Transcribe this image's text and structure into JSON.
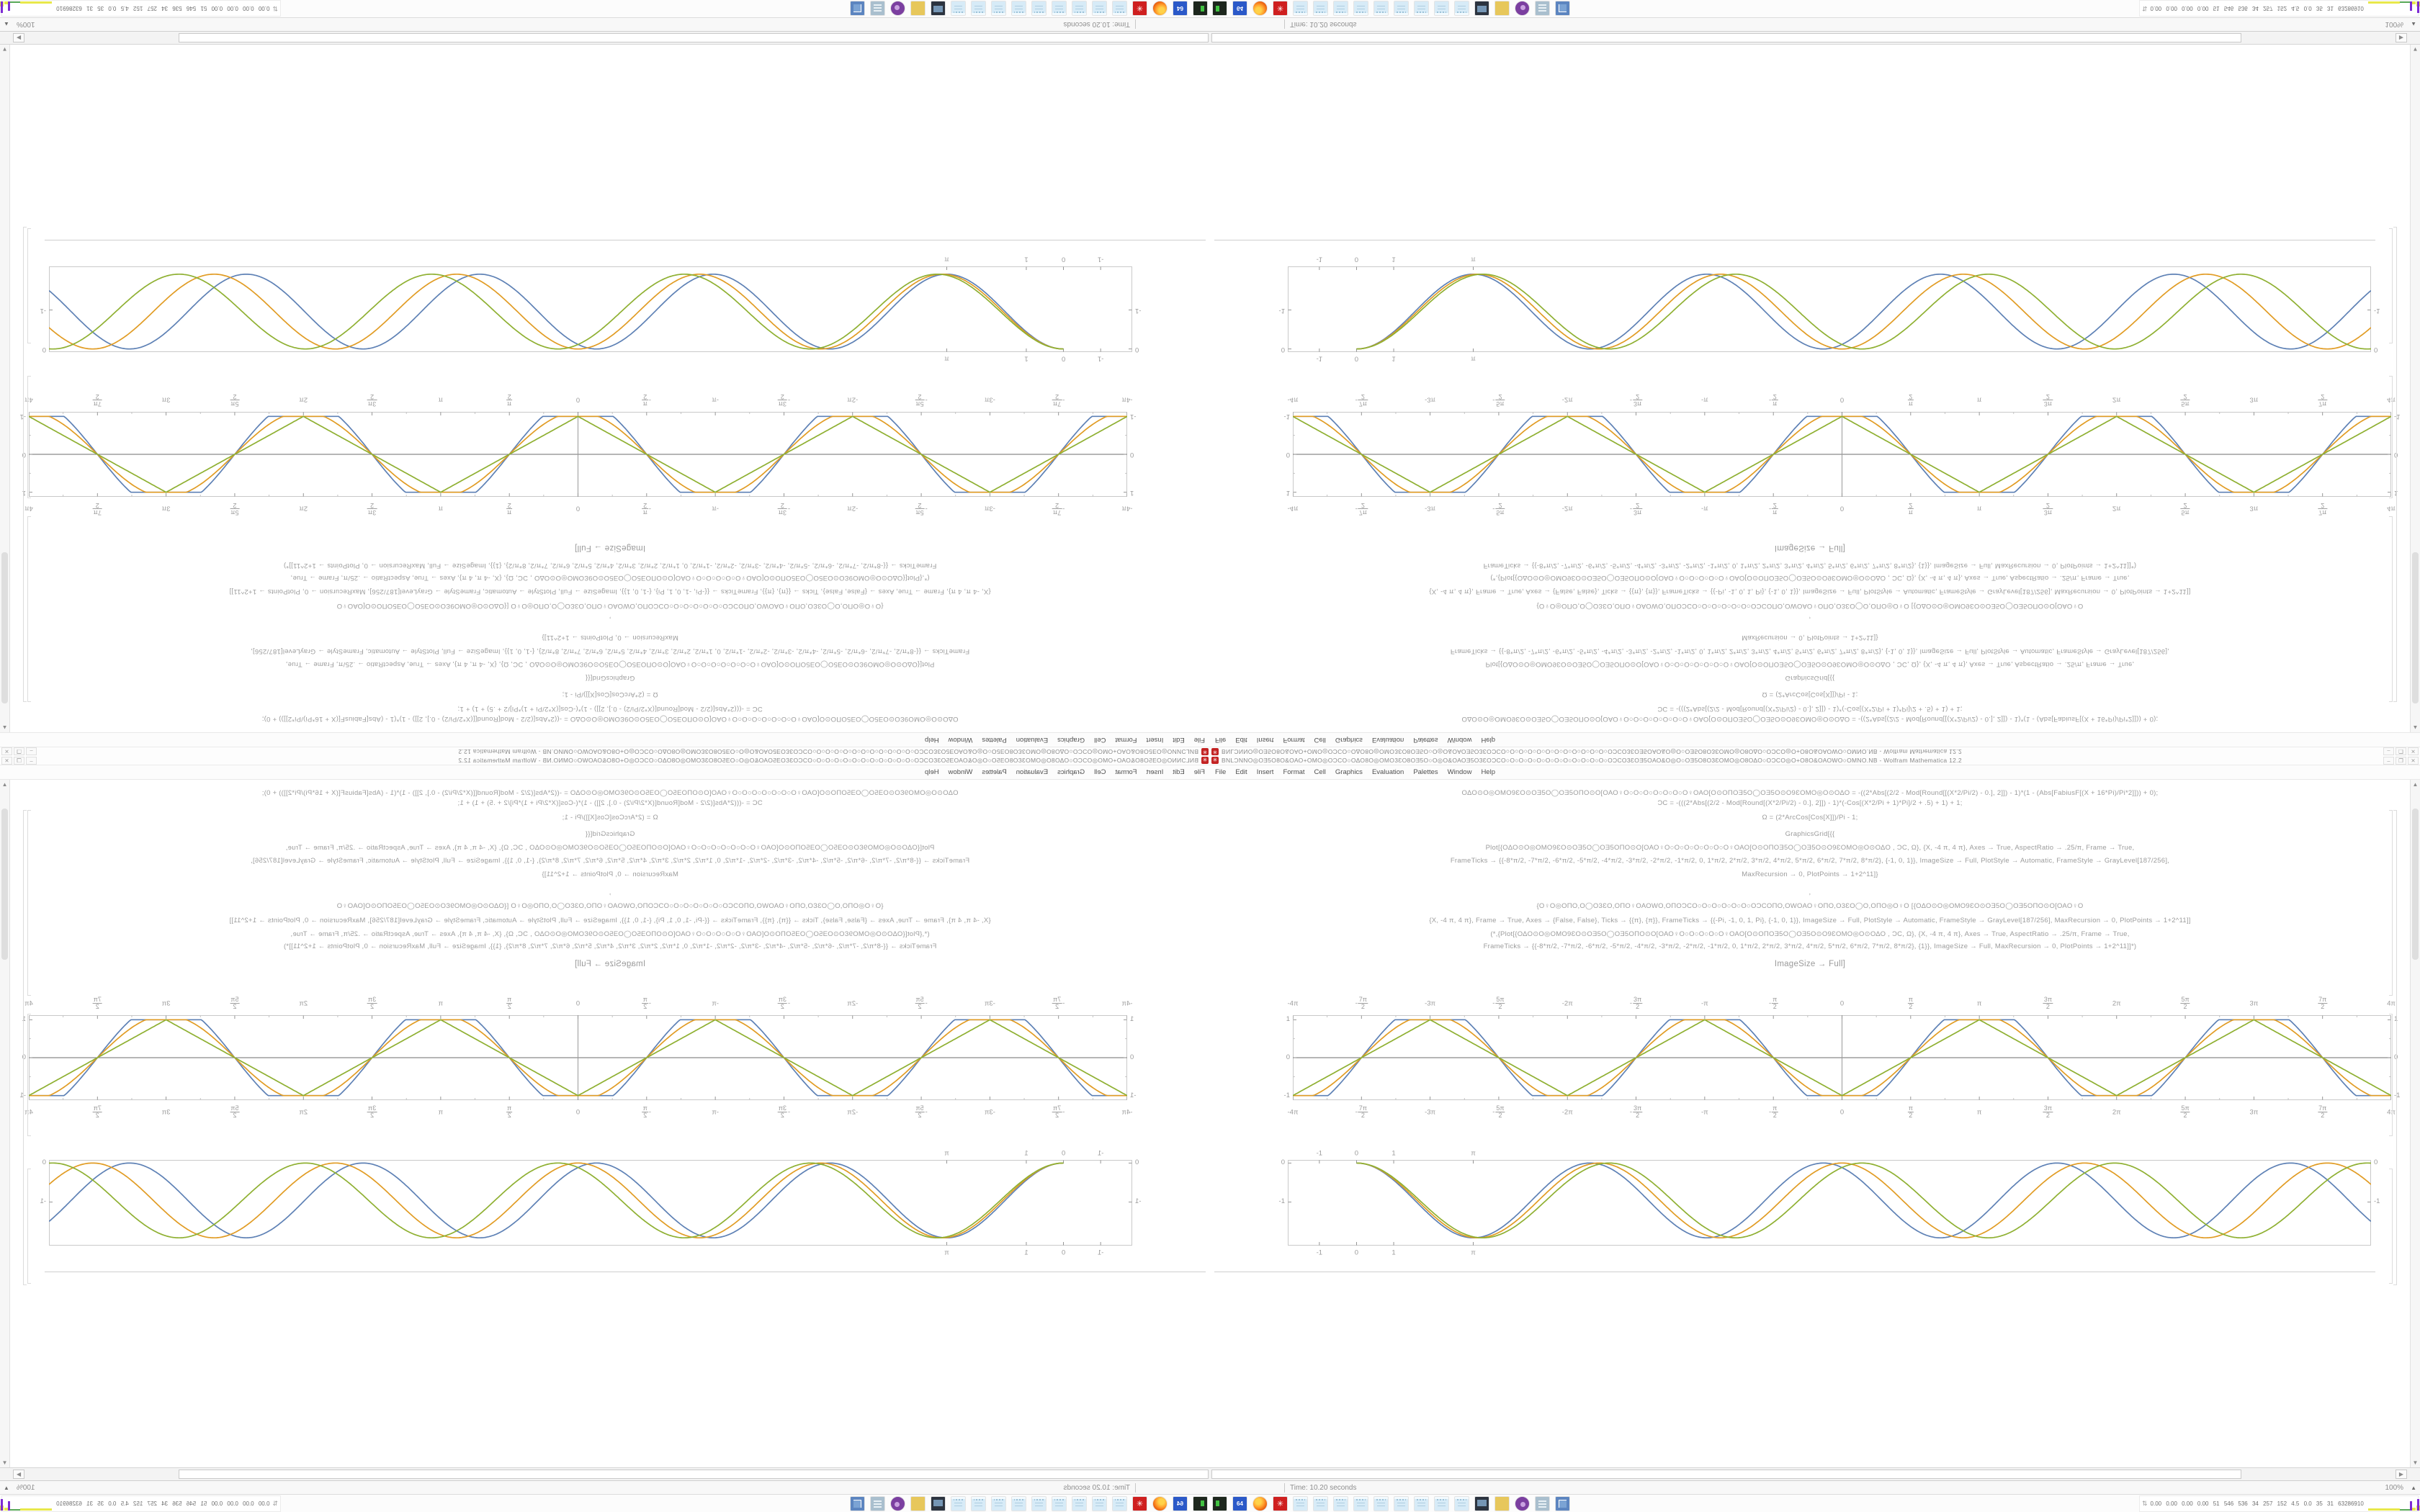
{
  "desktop": {
    "window": {
      "icon_glyph": "✳",
      "title": "BNLƆNΝΟ◎ΟƎ5Ο8Ο&ΟΑΟ+ΟΜΟ◎ΟƆCΟ○ΟΔΟ8Ο◎ΟΜΟ3ƐΟ8ΟƎ5Ο○Ο◎Ο&ΟΑΟƎ5Ο3ƐΟƆCΟ○Ο○Ο○Ο○Ο○Ο○Ο○Ο○Ο○Ο○Ο○Ο○ΟƆCΟ3ƐΟƎ5ΟΑΟ&Ο◎Ο○ΟƎ5Ο8Ο3ƐΟΜΟ◎Ο8ΟΔΟ○ΟƆCΟ◎Ο+Ο8Ο&ΟΑΟWΟ○ΟΜΝΟ.ΝΒ - Wolfram Mathematica 12.2",
      "controls": [
        {
          "name": "minimize-button",
          "glyph": "–"
        },
        {
          "name": "maximize-button",
          "glyph": "❐"
        },
        {
          "name": "close-button",
          "glyph": "✕"
        }
      ],
      "menu": [
        "File",
        "Edit",
        "Insert",
        "Format",
        "Cell",
        "Graphics",
        "Evaluation",
        "Palettes",
        "Window",
        "Help"
      ]
    },
    "notebook": {
      "code_lines": [
        {
          "mt": 0,
          "t": "ΟΔΟ⊙Ο◎ΟΜΟ9ƐΟ⊙ΟƎ5Ο◯ΟƎ5ΟΠΟ⊙Ο[ΟΑΟ♀Ο○Ο○Ο○Ο○Ο○Ο○Ο♀ΟΑΟ[Ο⊙ΟΠΟƎ5Ο◯ΟƎ5Ο⊙Ο9ƐΟΜΟ◎Ο⊙ΟΔΟ   = -((2*Abs[(2/2 - Mod[Round[[(X*2/Pi/2) - 0.], 2]]) - 1)*(1 - (Abs[FabiusF[(X + 16*Pi)/Pi*2]])) + 0);"
        },
        {
          "mt": 1,
          "t": "ƆC = -(((2*Abs[(2/2 - Mod[Round[(X*2/Pi/2) - 0.], 2]]) - 1)*(-Cos[(X*2/Pi + 1)*Pi]/2 + .5) + 1) + 1;"
        },
        {
          "mt": 7,
          "t": "Ω = (2*ArcCos[Cos[X]])/Pi - 1;"
        },
        {
          "mt": 10,
          "t": "GraphicsGrid[{{"
        },
        {
          "mt": 6,
          "t": "Plot[{ΟΔΟ⊙Ο◎ΟΜΟ9ƐΟ⊙ΟƎ5Ο◯ΟƎ5ΟΠΟ⊙Ο[ΟΑΟ♀Ο○Ο○Ο○Ο○Ο○Ο○Ο♀ΟΑΟ[Ο⊙ΟΠΟƎ5Ο◯ΟƎ5Ο⊙Ο9ƐΟΜΟ◎Ο⊙ΟΔΟ , ƆC, Ω}, {X, -4 π, 4 π}, Axes → True, AspectRatio → .25/π, Frame → True,"
        },
        {
          "mt": 5,
          "t": "FrameTicks → {{-8*π/2, -7*π/2, -6*π/2, -5*π/2, -4*π/2, -3*π/2, -2*π/2, -1*π/2, 0, 1*π/2, 2*π/2, 3*π/2, 4*π/2, 5*π/2, 6*π/2, 7*π/2, 8*π/2}, {-1, 0, 1}}, ImageSize → Full, PlotStyle → Automatic, FrameStyle → GrayLevel[187/256],"
        },
        {
          "mt": 6,
          "t": "MaxRecursion → 0, PlotPoints → 1+2^11]}"
        },
        {
          "mt": 12,
          "t": ","
        },
        {
          "mt": 6,
          "t": "{Ο♀Ο◎ΟΠΟ,Ο◯Ο3ƐΟ,ΟΠΟ♀ΟΑΟWΟ,ΟΠΟƆCΟ○Ο○Ο○Ο○Ο○Ο○ΟƆCΟΠΟ,ΟWΟΑΟ♀ΟΠΟ,Ο3ƐΟ◯Ο,ΟΠΟ◎Ο♀Ο   [{ΟΔΟ⊙Ο◎ΟΜΟ9ƐΟ⊙ΟƎ5Ο◯ΟƎ5ΟΠΟ⊙Ο[ΟΑΟ♀Ο"
        },
        {
          "mt": 7,
          "t": "{X, -4 π, 4 π}, Frame → True, Axes → {False, False}, Ticks → {{π}, {π}}, FrameTicks → {{-Pi, -1, 0, 1, Pi}, {-1, 0, 1}}, ImageSize → Full, PlotStyle → Automatic, FrameStyle → GrayLevel[187/256], MaxRecursion → 0, PlotPoints → 1+2^11]]"
        },
        {
          "mt": 6,
          "t": "(*,{Plot[{ΟΔΟ⊙Ο◎ΟΜΟ9ƐΟ⊙ΟƎ5Ο◯ΟƎ5ΟΠΟ⊙Ο[ΟΑΟ♀Ο○Ο○Ο○Ο○Ο♀ΟΑΟ[Ο⊙ΟΠΟƎ5Ο◯ΟƎ5Ο⊙Ο9ƐΟΜΟ◎Ο⊙ΟΔΟ , ƆC, Ω}, {X, -4 π, 4 π}, Axes → True, AspectRatio → .25/π, Frame → True,"
        },
        {
          "mt": 4,
          "t": "FrameTicks → {{-8*π/2, -7*π/2, -6*π/2, -5*π/2, -4*π/2, -3*π/2, -2*π/2, -1*π/2, 0, 1*π/2, 2*π/2, 3*π/2, 4*π/2, 5*π/2, 6*π/2, 7*π/2, 8*π/2}, {1}}, ImageSize → Full, MaxRecursion → 0, PlotPoints → 1+2^11]]*)"
        },
        {
          "mt": 12,
          "t": "ImageSize → Full]",
          "big": true
        }
      ]
    },
    "scrollbars": {
      "up_glyph": "▲",
      "down_glyph": "▼",
      "right_glyph": "▶"
    },
    "statusbar": {
      "time_text": "Time: 10.20 seconds",
      "zoom_text": "100%",
      "zoom_arrow": "▲"
    },
    "taskbar": {
      "icons": [
        {
          "name": "terminal-icon",
          "type": "terminal"
        },
        {
          "name": "floppy-64-icon",
          "type": "floppy",
          "label": "64"
        },
        {
          "name": "firefox-icon",
          "type": "firefox"
        },
        {
          "name": "settings-gear-icon",
          "type": "gear",
          "label": "✳"
        },
        {
          "name": "notepad-icon-1",
          "type": "notepad"
        },
        {
          "name": "notepad-icon-2",
          "type": "notepad"
        },
        {
          "name": "notepad-icon-3",
          "type": "notepad"
        },
        {
          "name": "notepad-icon-4",
          "type": "notepad"
        },
        {
          "name": "notepad-icon-5",
          "type": "notepad"
        },
        {
          "name": "notepad-icon-6",
          "type": "notepad"
        },
        {
          "name": "notepad-icon-7",
          "type": "notepad"
        },
        {
          "name": "notepad-icon-8",
          "type": "notepad"
        },
        {
          "name": "notepad-icon-9",
          "type": "notepad"
        },
        {
          "name": "monitor-icon",
          "type": "monitor"
        },
        {
          "name": "folder-icon",
          "type": "folder"
        },
        {
          "name": "media-player-icon",
          "type": "media"
        },
        {
          "name": "documents-icon",
          "type": "docs"
        },
        {
          "name": "window-icon",
          "type": "window"
        }
      ],
      "sysmon": {
        "updown_glyph": "⇅",
        "numbers": "0.00 0.00 0.00 0.00 51 546 536 34 257 152 4.5 0.0 35 31 63286910",
        "bars": [
          {
            "x": 2,
            "w": 44,
            "h": 3,
            "c": "#e8e84a"
          },
          {
            "x": 46,
            "w": 14,
            "h": 2,
            "c": "#57a857"
          },
          {
            "x": 60,
            "w": 3,
            "h": 13,
            "c": "#7d2bd4"
          },
          {
            "x": 63,
            "w": 5,
            "h": 4,
            "c": "#e8e84a"
          },
          {
            "x": 69,
            "w": 5,
            "h": 7,
            "c": "#e8e84a"
          },
          {
            "x": 70,
            "w": 3,
            "h": 16,
            "c": "#7d2bd4"
          },
          {
            "x": 75,
            "w": 18,
            "h": 9,
            "c": "#a8561f"
          },
          {
            "x": 86,
            "w": 6,
            "h": 4,
            "c": "#57a857"
          }
        ]
      }
    }
  },
  "chart_data": [
    {
      "type": "line",
      "id": "plotA",
      "title": "",
      "xlabel": "",
      "ylabel": "",
      "xlim": [
        -12.566,
        12.566
      ],
      "ylim": [
        -1.12,
        1.12
      ],
      "frame": true,
      "axes": true,
      "x_ticks": [
        {
          "v": -12.566,
          "l": "-4π"
        },
        {
          "v": -10.996,
          "l": "-7π/2"
        },
        {
          "v": -9.425,
          "l": "-3π"
        },
        {
          "v": -7.854,
          "l": "-5π/2"
        },
        {
          "v": -6.283,
          "l": "-2π"
        },
        {
          "v": -4.712,
          "l": "-3π/2"
        },
        {
          "v": -3.142,
          "l": "-π"
        },
        {
          "v": -1.571,
          "l": "-π/2"
        },
        {
          "v": 0,
          "l": "0"
        },
        {
          "v": 1.571,
          "l": "π/2"
        },
        {
          "v": 3.142,
          "l": "π"
        },
        {
          "v": 4.712,
          "l": "3π/2"
        },
        {
          "v": 6.283,
          "l": "2π"
        },
        {
          "v": 7.854,
          "l": "5π/2"
        },
        {
          "v": 9.425,
          "l": "3π"
        },
        {
          "v": 10.996,
          "l": "7π/2"
        },
        {
          "v": 12.566,
          "l": "4π"
        }
      ],
      "y_ticks": [
        {
          "v": 1,
          "l": "1"
        },
        {
          "v": 0,
          "l": "0"
        },
        {
          "v": -1,
          "l": "-1"
        }
      ],
      "series": [
        {
          "name": "flattened-negative-cosine",
          "color": "#5e81b5",
          "shape": "flat",
          "k": 1.45
        },
        {
          "name": "negative-cosine",
          "color": "#e19c24",
          "shape": "flat",
          "k": 1.12
        },
        {
          "name": "triangle-wave",
          "color": "#8fb032",
          "shape": "triangle"
        }
      ]
    },
    {
      "type": "line",
      "id": "plotB",
      "title": "",
      "xlabel": "",
      "ylabel": "",
      "xlim": [
        -1.85,
        27.3
      ],
      "ylim": [
        -2.12,
        0.08
      ],
      "frame": true,
      "axes": false,
      "x_start": 0,
      "amp": 0.96,
      "x_ticks": [
        {
          "v": -1,
          "l": "-1"
        },
        {
          "v": 0,
          "l": "0"
        },
        {
          "v": 1,
          "l": "1"
        },
        {
          "v": 3.1416,
          "l": "π"
        }
      ],
      "y_ticks": [
        {
          "v": 0,
          "l": "0"
        },
        {
          "v": -1,
          "l": "-1"
        }
      ],
      "series": [
        {
          "name": "cosine-dip-w1.000",
          "color": "#5e81b5",
          "w": 1.0
        },
        {
          "name": "cosine-dip-w0.962",
          "color": "#e19c24",
          "w": 0.962
        },
        {
          "name": "cosine-dip-w0.924",
          "color": "#8fb032",
          "w": 0.924
        }
      ]
    }
  ]
}
